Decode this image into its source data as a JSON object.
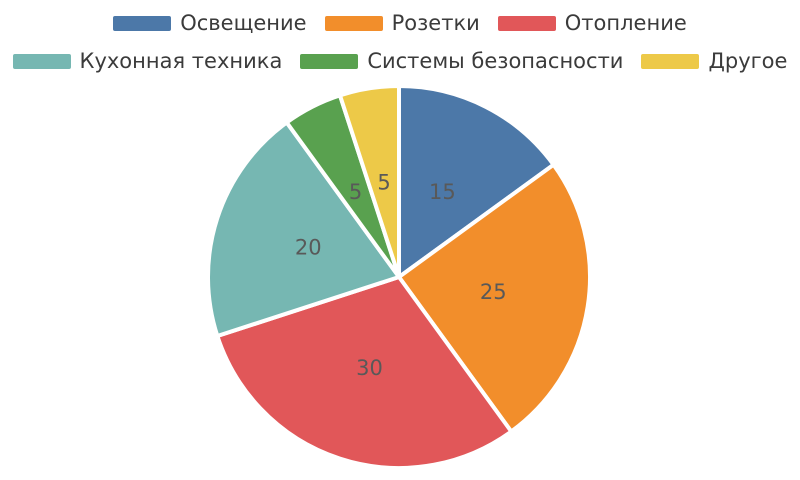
{
  "chart_data": {
    "type": "pie",
    "categories": [
      "Освещение",
      "Розетки",
      "Отопление",
      "Кухонная техника",
      "Системы безопасности",
      "Другое"
    ],
    "values": [
      15,
      25,
      30,
      20,
      5,
      5
    ],
    "data_labels": [
      "15",
      "25",
      "30",
      "20",
      "5",
      "5"
    ],
    "colors": [
      "#4C78A8",
      "#F28E2B",
      "#E15759",
      "#76B7B2",
      "#59A14F",
      "#EDC948"
    ],
    "start_angle": "12-oclock",
    "direction": "clockwise",
    "slice_gap_color": "#ffffff",
    "value_label_color": "#595959",
    "legend_position": "top",
    "legend_rows": [
      [
        "Освещение",
        "Розетки",
        "Отопление"
      ],
      [
        "Кухонная техника",
        "Системы безопасности",
        "Другое"
      ]
    ],
    "legend_text_color": "#3b3b3b",
    "title": ""
  }
}
